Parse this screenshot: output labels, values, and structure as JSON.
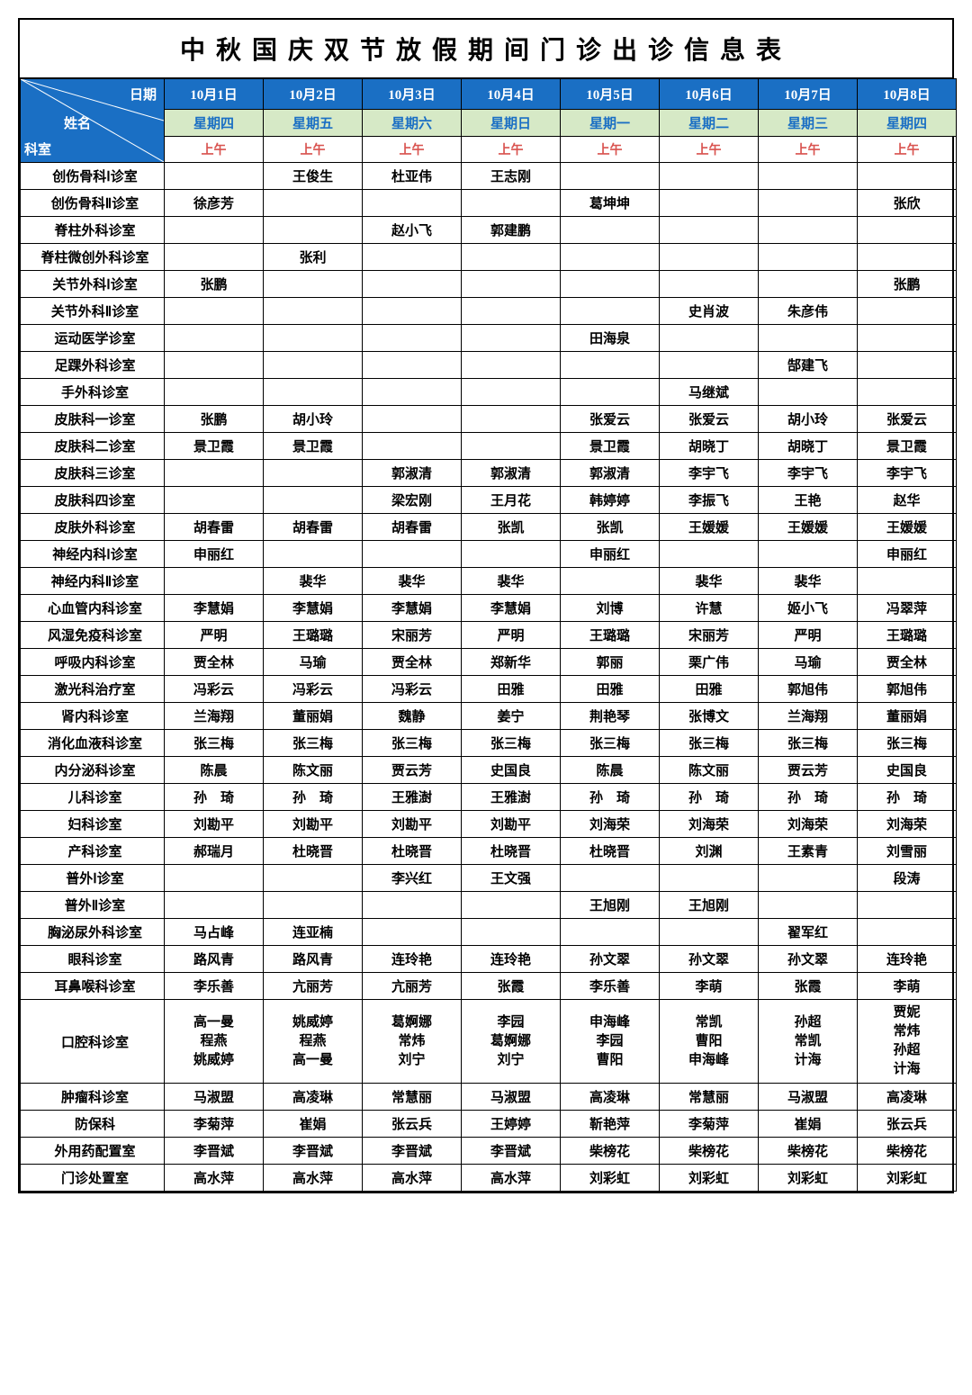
{
  "title": "中秋国庆双节放假期间门诊出诊信息表",
  "header": {
    "diagonal": {
      "date": "日期",
      "name": "姓名",
      "dept": "科室"
    },
    "dates": [
      "10月1日",
      "10月2日",
      "10月3日",
      "10月4日",
      "10月5日",
      "10月6日",
      "10月7日",
      "10月8日"
    ],
    "days": [
      "星期四",
      "星期五",
      "星期六",
      "星期日",
      "星期一",
      "星期二",
      "星期三",
      "星期四"
    ],
    "time": "上午"
  },
  "departments": [
    {
      "name": "创伤骨科Ⅰ诊室",
      "vals": [
        "",
        "王俊生",
        "杜亚伟",
        "王志刚",
        "",
        "",
        "",
        ""
      ]
    },
    {
      "name": "创伤骨科Ⅱ诊室",
      "vals": [
        "徐彦芳",
        "",
        "",
        "",
        "葛坤坤",
        "",
        "",
        "张欣"
      ]
    },
    {
      "name": "脊柱外科诊室",
      "vals": [
        "",
        "",
        "赵小飞",
        "郭建鹏",
        "",
        "",
        "",
        ""
      ]
    },
    {
      "name": "脊柱微创外科诊室",
      "vals": [
        "",
        "张利",
        "",
        "",
        "",
        "",
        "",
        ""
      ]
    },
    {
      "name": "关节外科Ⅰ诊室",
      "vals": [
        "张鹏",
        "",
        "",
        "",
        "",
        "",
        "",
        "张鹏"
      ]
    },
    {
      "name": "关节外科Ⅱ诊室",
      "vals": [
        "",
        "",
        "",
        "",
        "",
        "史肖波",
        "朱彦伟",
        ""
      ]
    },
    {
      "name": "运动医学诊室",
      "vals": [
        "",
        "",
        "",
        "",
        "田海泉",
        "",
        "",
        ""
      ]
    },
    {
      "name": "足踝外科诊室",
      "vals": [
        "",
        "",
        "",
        "",
        "",
        "",
        "郜建飞",
        ""
      ]
    },
    {
      "name": "手外科诊室",
      "vals": [
        "",
        "",
        "",
        "",
        "",
        "马继斌",
        "",
        ""
      ]
    },
    {
      "name": "皮肤科一诊室",
      "vals": [
        "张鹏",
        "胡小玲",
        "",
        "",
        "张爱云",
        "张爱云",
        "胡小玲",
        "张爱云"
      ]
    },
    {
      "name": "皮肤科二诊室",
      "vals": [
        "景卫霞",
        "景卫霞",
        "",
        "",
        "景卫霞",
        "胡晓丁",
        "胡晓丁",
        "景卫霞"
      ]
    },
    {
      "name": "皮肤科三诊室",
      "vals": [
        "",
        "",
        "郭淑清",
        "郭淑清",
        "郭淑清",
        "李宇飞",
        "李宇飞",
        "李宇飞"
      ]
    },
    {
      "name": "皮肤科四诊室",
      "vals": [
        "",
        "",
        "梁宏刚",
        "王月花",
        "韩婷婷",
        "李振飞",
        "王艳",
        "赵华"
      ]
    },
    {
      "name": "皮肤外科诊室",
      "vals": [
        "胡春雷",
        "胡春雷",
        "胡春雷",
        "张凯",
        "张凯",
        "王媛媛",
        "王媛媛",
        "王媛媛"
      ]
    },
    {
      "name": "神经内科Ⅰ诊室",
      "vals": [
        "申丽红",
        "",
        "",
        "",
        "申丽红",
        "",
        "",
        "申丽红"
      ]
    },
    {
      "name": "神经内科Ⅱ诊室",
      "vals": [
        "",
        "裴华",
        "裴华",
        "裴华",
        "",
        "裴华",
        "裴华",
        ""
      ]
    },
    {
      "name": "心血管内科诊室",
      "vals": [
        "李慧娟",
        "李慧娟",
        "李慧娟",
        "李慧娟",
        "刘博",
        "许慧",
        "姬小飞",
        "冯翠萍"
      ]
    },
    {
      "name": "风湿免疫科诊室",
      "vals": [
        "严明",
        "王璐璐",
        "宋丽芳",
        "严明",
        "王璐璐",
        "宋丽芳",
        "严明",
        "王璐璐"
      ]
    },
    {
      "name": "呼吸内科诊室",
      "vals": [
        "贾全林",
        "马瑜",
        "贾全林",
        "郑新华",
        "郭丽",
        "栗广伟",
        "马瑜",
        "贾全林"
      ]
    },
    {
      "name": "激光科治疗室",
      "vals": [
        "冯彩云",
        "冯彩云",
        "冯彩云",
        "田雅",
        "田雅",
        "田雅",
        "郭旭伟",
        "郭旭伟"
      ]
    },
    {
      "name": "肾内科诊室",
      "vals": [
        "兰海翔",
        "董丽娟",
        "魏静",
        "姜宁",
        "荆艳琴",
        "张博文",
        "兰海翔",
        "董丽娟"
      ]
    },
    {
      "name": "消化血液科诊室",
      "vals": [
        "张三梅",
        "张三梅",
        "张三梅",
        "张三梅",
        "张三梅",
        "张三梅",
        "张三梅",
        "张三梅"
      ]
    },
    {
      "name": "内分泌科诊室",
      "vals": [
        "陈晨",
        "陈文丽",
        "贾云芳",
        "史国良",
        "陈晨",
        "陈文丽",
        "贾云芳",
        "史国良"
      ]
    },
    {
      "name": "儿科诊室",
      "vals": [
        "孙　琦",
        "孙　琦",
        "王雅澍",
        "王雅澍",
        "孙　琦",
        "孙　琦",
        "孙　琦",
        "孙　琦"
      ]
    },
    {
      "name": "妇科诊室",
      "vals": [
        "刘勘平",
        "刘勘平",
        "刘勘平",
        "刘勘平",
        "刘海荣",
        "刘海荣",
        "刘海荣",
        "刘海荣"
      ]
    },
    {
      "name": "产科诊室",
      "vals": [
        "郝瑞月",
        "杜晓晋",
        "杜晓晋",
        "杜晓晋",
        "杜晓晋",
        "刘渊",
        "王素青",
        "刘雪丽"
      ]
    },
    {
      "name": "普外Ⅰ诊室",
      "vals": [
        "",
        "",
        "李兴红",
        "王文强",
        "",
        "",
        "",
        "段涛"
      ]
    },
    {
      "name": "普外Ⅱ诊室",
      "vals": [
        "",
        "",
        "",
        "",
        "王旭刚",
        "王旭刚",
        "",
        ""
      ]
    },
    {
      "name": "胸泌尿外科诊室",
      "vals": [
        "马占峰",
        "连亚楠",
        "",
        "",
        "",
        "",
        "翟军红",
        ""
      ]
    },
    {
      "name": "眼科诊室",
      "vals": [
        "路风青",
        "路风青",
        "连玲艳",
        "连玲艳",
        "孙文翠",
        "孙文翠",
        "孙文翠",
        "连玲艳"
      ]
    },
    {
      "name": "耳鼻喉科诊室",
      "vals": [
        "李乐善",
        "亢丽芳",
        "亢丽芳",
        "张霞",
        "李乐善",
        "李萌",
        "张霞",
        "李萌"
      ]
    },
    {
      "name": "口腔科诊室",
      "vals": [
        "高一曼\n程燕\n姚威婷",
        "姚威婷\n程燕\n高一曼",
        "葛婀娜\n常炜\n刘宁",
        "李园\n葛婀娜\n刘宁",
        "申海峰\n李园\n曹阳",
        "常凯\n曹阳\n申海峰",
        "孙超\n常凯\n计海",
        "贾妮\n常炜\n孙超\n计海"
      ]
    },
    {
      "name": "肿瘤科诊室",
      "vals": [
        "马淑盟",
        "高凌琳",
        "常慧丽",
        "马淑盟",
        "高凌琳",
        "常慧丽",
        "马淑盟",
        "高凌琳"
      ]
    },
    {
      "name": "防保科",
      "vals": [
        "李菊萍",
        "崔娟",
        "张云兵",
        "王婷婷",
        "靳艳萍",
        "李菊萍",
        "崔娟",
        "张云兵"
      ]
    },
    {
      "name": "外用药配置室",
      "vals": [
        "李晋斌",
        "李晋斌",
        "李晋斌",
        "李晋斌",
        "柴榜花",
        "柴榜花",
        "柴榜花",
        "柴榜花"
      ]
    },
    {
      "name": "门诊处置室",
      "vals": [
        "高水萍",
        "高水萍",
        "高水萍",
        "高水萍",
        "刘彩虹",
        "刘彩虹",
        "刘彩虹",
        "刘彩虹"
      ]
    }
  ],
  "styling": {
    "header_bg": "#1a6fc4",
    "header_fg": "#ffffff",
    "day_bg": "#d6e9c6",
    "day_fg": "#1a6fc4",
    "time_fg": "#d9534f",
    "border": "#000000",
    "title_fontsize": 28,
    "cell_fontsize": 15
  }
}
